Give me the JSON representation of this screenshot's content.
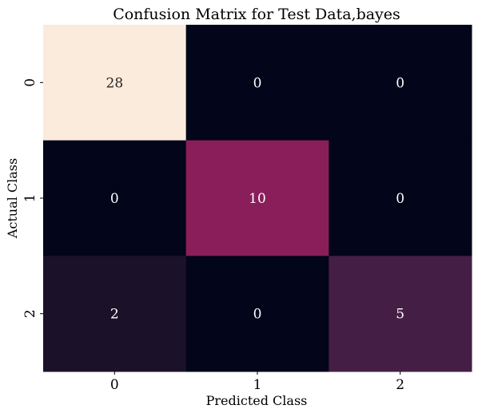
{
  "chart_data": {
    "type": "heatmap",
    "title": "Confusion Matrix for Test Data,bayes",
    "xlabel": "Predicted Class",
    "ylabel": "Actual Class",
    "x_categories": [
      "0",
      "1",
      "2"
    ],
    "y_categories": [
      "0",
      "1",
      "2"
    ],
    "values": [
      [
        28,
        0,
        0
      ],
      [
        0,
        10,
        0
      ],
      [
        2,
        0,
        5
      ]
    ],
    "colors": [
      [
        "#fbebdc",
        "#03051a",
        "#03051a"
      ],
      [
        "#03051a",
        "#8a1e5b",
        "#03051a"
      ],
      [
        "#1b1229",
        "#03051a",
        "#451e45"
      ]
    ],
    "annotation_colors": [
      [
        "#262626",
        "#ffffff",
        "#ffffff"
      ],
      [
        "#ffffff",
        "#ffffff",
        "#ffffff"
      ],
      [
        "#ffffff",
        "#ffffff",
        "#ffffff"
      ]
    ],
    "colorbar": false,
    "grid": false
  }
}
